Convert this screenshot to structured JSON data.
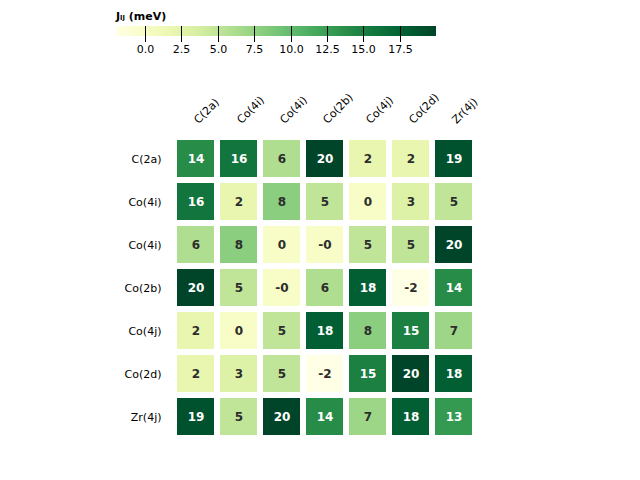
{
  "chart_data": {
    "type": "heatmap",
    "categories": [
      "C(2a)",
      "Co(4i)",
      "Co(4i)",
      "Co(2b)",
      "Co(4j)",
      "Co(2d)",
      "Zr(4j)"
    ],
    "values": [
      [
        14,
        16,
        6,
        20,
        2,
        2,
        19
      ],
      [
        16,
        2,
        8,
        5,
        0,
        3,
        5
      ],
      [
        6,
        8,
        0,
        0,
        5,
        5,
        20
      ],
      [
        20,
        5,
        0,
        6,
        18,
        -2,
        14
      ],
      [
        2,
        0,
        5,
        18,
        8,
        15,
        7
      ],
      [
        2,
        3,
        5,
        -2,
        15,
        20,
        18
      ],
      [
        19,
        5,
        20,
        14,
        7,
        18,
        13
      ]
    ],
    "value_labels": [
      [
        "14",
        "16",
        "6",
        "20",
        "2",
        "2",
        "19"
      ],
      [
        "16",
        "2",
        "8",
        "5",
        "0",
        "3",
        "5"
      ],
      [
        "6",
        "8",
        "0",
        "-0",
        "5",
        "5",
        "20"
      ],
      [
        "20",
        "5",
        "-0",
        "6",
        "18",
        "-2",
        "14"
      ],
      [
        "2",
        "0",
        "5",
        "18",
        "8",
        "15",
        "7"
      ],
      [
        "2",
        "3",
        "5",
        "-2",
        "15",
        "20",
        "18"
      ],
      [
        "19",
        "5",
        "20",
        "14",
        "7",
        "18",
        "13"
      ]
    ],
    "data_labels": true,
    "grid": false,
    "color": "YlGn",
    "colorbar": {
      "range": [
        -2,
        20
      ],
      "ticks": [
        {
          "value": 0,
          "label": "0.0"
        },
        {
          "value": 2.5,
          "label": "2.5"
        },
        {
          "value": 5,
          "label": "5.0"
        },
        {
          "value": 7.5,
          "label": "7.5"
        },
        {
          "value": 10,
          "label": "10.0"
        },
        {
          "value": 12.5,
          "label": "12.5"
        },
        {
          "value": 15,
          "label": "15.0"
        },
        {
          "value": 17.5,
          "label": "17.5"
        }
      ],
      "label": "Jᵢⱼ (meV)"
    }
  }
}
